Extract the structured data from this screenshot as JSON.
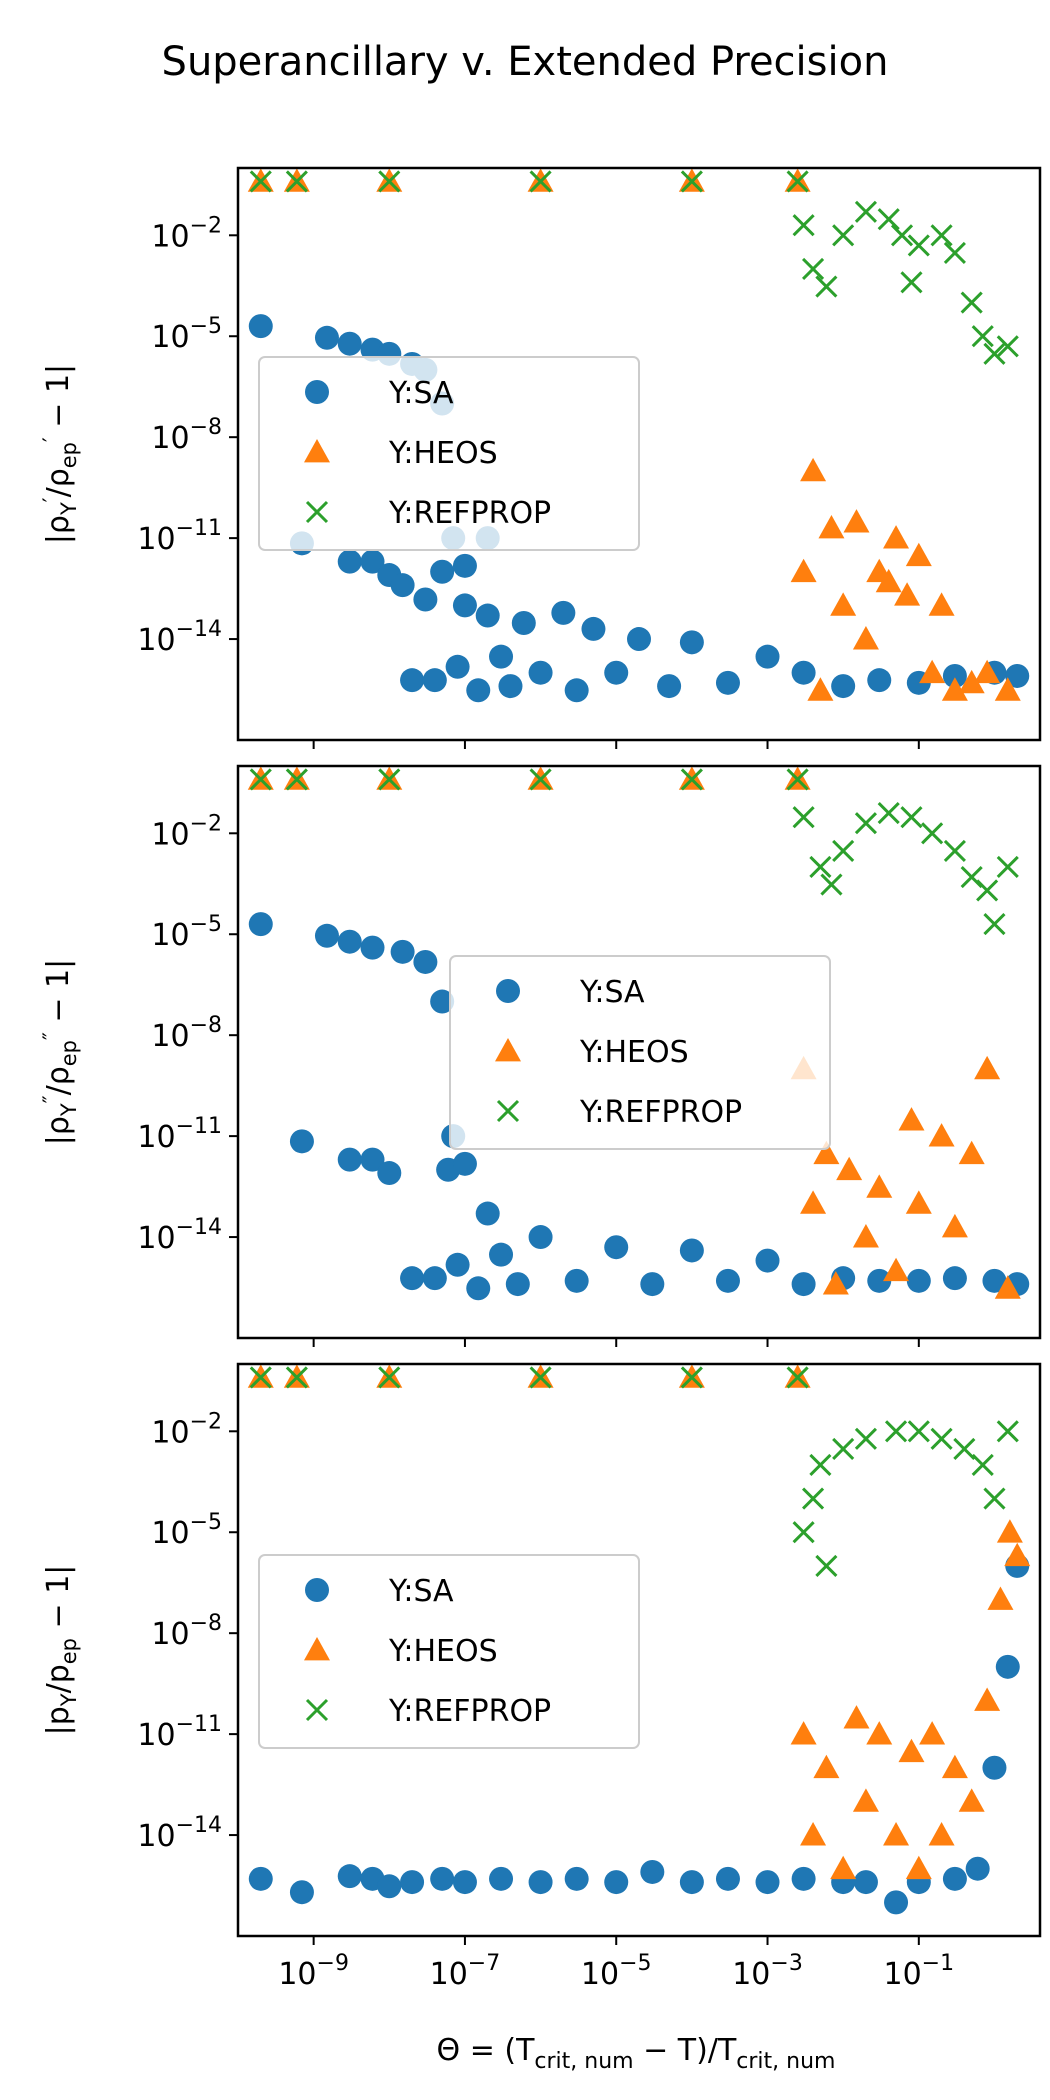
{
  "figure": {
    "title": "Superancillary v. Extended Precision",
    "xlabel": "Θ = (T_crit,num − T)/T_crit,num"
  },
  "colors": {
    "SA": "#1f77b4",
    "HEOS": "#ff7f0e",
    "REFPROP": "#2ca02c"
  },
  "chart_data": [
    {
      "type": "scatter",
      "panel": "top",
      "ylabel": "|ρ′_Y/ρ′_ep − 1|",
      "xscale": "log",
      "yscale": "log",
      "xlim": [
        1e-10,
        4
      ],
      "ylim": [
        1e-17,
        1.0
      ],
      "xticks": [
        "10^-9",
        "10^-7",
        "10^-5",
        "10^-3",
        "10^-1"
      ],
      "yticks": [
        "10^-2",
        "10^-5",
        "10^-8",
        "10^-11",
        "10^-14"
      ],
      "legend": {
        "placement": "center-left",
        "entries": [
          "Y:SA",
          "Y:HEOS",
          "Y:REFPROP"
        ]
      },
      "series": [
        {
          "name": "Y:SA",
          "marker": "circle",
          "points": [
            [
              2e-10,
              2e-05
            ],
            [
              7e-10,
              7e-12
            ],
            [
              1.5e-09,
              9e-06
            ],
            [
              3e-09,
              2e-12
            ],
            [
              3e-09,
              6e-06
            ],
            [
              6e-09,
              2e-12
            ],
            [
              6e-09,
              4e-06
            ],
            [
              1e-08,
              8e-13
            ],
            [
              1e-08,
              3e-06
            ],
            [
              1.5e-08,
              4e-13
            ],
            [
              2e-08,
              1.5e-06
            ],
            [
              2e-08,
              6e-16
            ],
            [
              3e-08,
              1e-06
            ],
            [
              3e-08,
              1.5e-13
            ],
            [
              4e-08,
              6e-16
            ],
            [
              5e-08,
              1e-07
            ],
            [
              5e-08,
              1e-12
            ],
            [
              7e-08,
              1e-11
            ],
            [
              8e-08,
              1.5e-15
            ],
            [
              1e-07,
              1.5e-12
            ],
            [
              1e-07,
              1e-13
            ],
            [
              1.5e-07,
              3e-16
            ],
            [
              2e-07,
              5e-14
            ],
            [
              2e-07,
              1e-11
            ],
            [
              3e-07,
              3e-15
            ],
            [
              4e-07,
              4e-16
            ],
            [
              6e-07,
              3e-14
            ],
            [
              1e-06,
              1e-15
            ],
            [
              2e-06,
              6e-14
            ],
            [
              3e-06,
              3e-16
            ],
            [
              5e-06,
              2e-14
            ],
            [
              1e-05,
              1e-15
            ],
            [
              2e-05,
              1e-14
            ],
            [
              5e-05,
              4e-16
            ],
            [
              0.0001,
              8e-15
            ],
            [
              0.0003,
              5e-16
            ],
            [
              0.001,
              3e-15
            ],
            [
              0.003,
              1e-15
            ],
            [
              0.01,
              4e-16
            ],
            [
              0.03,
              6e-16
            ],
            [
              0.1,
              5e-16
            ],
            [
              0.3,
              8e-16
            ],
            [
              1,
              1e-15
            ],
            [
              2,
              8e-16
            ]
          ]
        },
        {
          "name": "Y:HEOS",
          "marker": "triangle",
          "points": [
            [
              2e-10,
              0.4
            ],
            [
              6e-10,
              0.4
            ],
            [
              1e-08,
              0.4
            ],
            [
              1e-06,
              0.4
            ],
            [
              0.0001,
              0.4
            ],
            [
              0.0025,
              0.4
            ],
            [
              0.003,
              1e-12
            ],
            [
              0.004,
              1e-09
            ],
            [
              0.005,
              3e-16
            ],
            [
              0.007,
              2e-11
            ],
            [
              0.01,
              1e-13
            ],
            [
              0.015,
              3e-11
            ],
            [
              0.02,
              1e-14
            ],
            [
              0.03,
              1e-12
            ],
            [
              0.04,
              5e-13
            ],
            [
              0.05,
              1e-11
            ],
            [
              0.07,
              2e-13
            ],
            [
              0.1,
              3e-12
            ],
            [
              0.15,
              1e-15
            ],
            [
              0.2,
              1e-13
            ],
            [
              0.3,
              3e-16
            ],
            [
              0.5,
              5e-16
            ],
            [
              0.8,
              1e-15
            ],
            [
              1.5,
              3e-16
            ]
          ]
        },
        {
          "name": "Y:REFPROP",
          "marker": "x",
          "points": [
            [
              2e-10,
              0.4
            ],
            [
              6e-10,
              0.4
            ],
            [
              1e-08,
              0.4
            ],
            [
              1e-06,
              0.4
            ],
            [
              0.0001,
              0.4
            ],
            [
              0.0025,
              0.4
            ],
            [
              0.003,
              0.02
            ],
            [
              0.004,
              0.001
            ],
            [
              0.006,
              0.0003
            ],
            [
              0.01,
              0.01
            ],
            [
              0.02,
              0.05
            ],
            [
              0.04,
              0.03
            ],
            [
              0.06,
              0.01
            ],
            [
              0.08,
              0.0004
            ],
            [
              0.1,
              0.005
            ],
            [
              0.2,
              0.01
            ],
            [
              0.3,
              0.003
            ],
            [
              0.5,
              0.0001
            ],
            [
              0.7,
              1e-05
            ],
            [
              1,
              3e-06
            ],
            [
              1.5,
              5e-06
            ]
          ]
        }
      ]
    },
    {
      "type": "scatter",
      "panel": "middle",
      "ylabel": "|ρ″_Y/ρ″_ep − 1|",
      "xscale": "log",
      "yscale": "log",
      "xlim": [
        1e-10,
        4
      ],
      "ylim": [
        1e-17,
        1.0
      ],
      "xticks": [
        "10^-9",
        "10^-7",
        "10^-5",
        "10^-3",
        "10^-1"
      ],
      "yticks": [
        "10^-2",
        "10^-5",
        "10^-8",
        "10^-11",
        "10^-14"
      ],
      "legend": {
        "placement": "center",
        "entries": [
          "Y:SA",
          "Y:HEOS",
          "Y:REFPROP"
        ]
      },
      "series": [
        {
          "name": "Y:SA",
          "marker": "circle",
          "points": [
            [
              2e-10,
              2e-05
            ],
            [
              7e-10,
              7e-12
            ],
            [
              1.5e-09,
              9e-06
            ],
            [
              3e-09,
              2e-12
            ],
            [
              3e-09,
              6e-06
            ],
            [
              6e-09,
              2e-12
            ],
            [
              6e-09,
              4e-06
            ],
            [
              1e-08,
              8e-13
            ],
            [
              1.5e-08,
              3e-06
            ],
            [
              2e-08,
              6e-16
            ],
            [
              3e-08,
              1.5e-06
            ],
            [
              4e-08,
              6e-16
            ],
            [
              5e-08,
              1e-07
            ],
            [
              6e-08,
              1e-12
            ],
            [
              7e-08,
              1e-11
            ],
            [
              8e-08,
              1.5e-15
            ],
            [
              1e-07,
              1.5e-12
            ],
            [
              1.5e-07,
              3e-16
            ],
            [
              2e-07,
              5e-14
            ],
            [
              3e-07,
              3e-15
            ],
            [
              5e-07,
              4e-16
            ],
            [
              1e-06,
              1e-14
            ],
            [
              3e-06,
              5e-16
            ],
            [
              1e-05,
              5e-15
            ],
            [
              3e-05,
              4e-16
            ],
            [
              0.0001,
              4e-15
            ],
            [
              0.0003,
              5e-16
            ],
            [
              0.001,
              2e-15
            ],
            [
              0.003,
              4e-16
            ],
            [
              0.01,
              6e-16
            ],
            [
              0.03,
              5e-16
            ],
            [
              0.1,
              5e-16
            ],
            [
              0.3,
              6e-16
            ],
            [
              1,
              5e-16
            ],
            [
              2,
              4e-16
            ]
          ]
        },
        {
          "name": "Y:HEOS",
          "marker": "triangle",
          "points": [
            [
              2e-10,
              0.4
            ],
            [
              6e-10,
              0.4
            ],
            [
              1e-08,
              0.4
            ],
            [
              1e-06,
              0.4
            ],
            [
              0.0001,
              0.4
            ],
            [
              0.0025,
              0.4
            ],
            [
              0.003,
              1e-09
            ],
            [
              0.004,
              1e-13
            ],
            [
              0.006,
              3e-12
            ],
            [
              0.008,
              4e-16
            ],
            [
              0.012,
              1e-12
            ],
            [
              0.02,
              1e-14
            ],
            [
              0.03,
              3e-13
            ],
            [
              0.05,
              1e-15
            ],
            [
              0.08,
              3e-11
            ],
            [
              0.1,
              1e-13
            ],
            [
              0.2,
              1e-11
            ],
            [
              0.3,
              2e-14
            ],
            [
              0.5,
              3e-12
            ],
            [
              0.8,
              1e-09
            ],
            [
              1.5,
              3e-16
            ]
          ]
        },
        {
          "name": "Y:REFPROP",
          "marker": "x",
          "points": [
            [
              2e-10,
              0.4
            ],
            [
              6e-10,
              0.4
            ],
            [
              1e-08,
              0.4
            ],
            [
              1e-06,
              0.4
            ],
            [
              0.0001,
              0.4
            ],
            [
              0.0025,
              0.4
            ],
            [
              0.003,
              0.03
            ],
            [
              0.005,
              0.001
            ],
            [
              0.007,
              0.0003
            ],
            [
              0.01,
              0.003
            ],
            [
              0.02,
              0.02
            ],
            [
              0.04,
              0.04
            ],
            [
              0.08,
              0.03
            ],
            [
              0.15,
              0.01
            ],
            [
              0.3,
              0.003
            ],
            [
              0.5,
              0.0005
            ],
            [
              0.8,
              0.0002
            ],
            [
              1,
              2e-05
            ],
            [
              1.5,
              0.001
            ]
          ]
        }
      ]
    },
    {
      "type": "scatter",
      "panel": "bottom",
      "ylabel": "|p_Y/p_ep − 1|",
      "xscale": "log",
      "yscale": "log",
      "xlim": [
        1e-10,
        4
      ],
      "ylim": [
        1e-17,
        1.0
      ],
      "xticks": [
        "10^-9",
        "10^-7",
        "10^-5",
        "10^-3",
        "10^-1"
      ],
      "yticks": [
        "10^-2",
        "10^-5",
        "10^-8",
        "10^-11",
        "10^-14"
      ],
      "legend": {
        "placement": "center-left",
        "entries": [
          "Y:SA",
          "Y:HEOS",
          "Y:REFPROP"
        ]
      },
      "series": [
        {
          "name": "Y:SA",
          "marker": "circle",
          "points": [
            [
              2e-10,
              5e-16
            ],
            [
              7e-10,
              2e-16
            ],
            [
              3e-09,
              6e-16
            ],
            [
              6e-09,
              5e-16
            ],
            [
              1e-08,
              3e-16
            ],
            [
              2e-08,
              4e-16
            ],
            [
              5e-08,
              5e-16
            ],
            [
              1e-07,
              4e-16
            ],
            [
              3e-07,
              5e-16
            ],
            [
              1e-06,
              4e-16
            ],
            [
              3e-06,
              5e-16
            ],
            [
              1e-05,
              4e-16
            ],
            [
              3e-05,
              8e-16
            ],
            [
              0.0001,
              4e-16
            ],
            [
              0.0003,
              5e-16
            ],
            [
              0.001,
              4e-16
            ],
            [
              0.003,
              5e-16
            ],
            [
              0.01,
              4e-16
            ],
            [
              0.02,
              4e-16
            ],
            [
              0.05,
              1e-16
            ],
            [
              0.1,
              4e-16
            ],
            [
              0.3,
              5e-16
            ],
            [
              0.6,
              1e-15
            ],
            [
              1,
              1e-12
            ],
            [
              1.5,
              1e-09
            ],
            [
              2,
              1e-06
            ]
          ]
        },
        {
          "name": "Y:HEOS",
          "marker": "triangle",
          "points": [
            [
              2e-10,
              0.4
            ],
            [
              6e-10,
              0.4
            ],
            [
              1e-08,
              0.4
            ],
            [
              1e-06,
              0.4
            ],
            [
              0.0001,
              0.4
            ],
            [
              0.0025,
              0.4
            ],
            [
              0.003,
              1e-11
            ],
            [
              0.004,
              1e-14
            ],
            [
              0.006,
              1e-12
            ],
            [
              0.01,
              1e-15
            ],
            [
              0.015,
              3e-11
            ],
            [
              0.02,
              1e-13
            ],
            [
              0.03,
              1e-11
            ],
            [
              0.05,
              1e-14
            ],
            [
              0.08,
              3e-12
            ],
            [
              0.1,
              1e-15
            ],
            [
              0.15,
              1e-11
            ],
            [
              0.2,
              1e-14
            ],
            [
              0.3,
              1e-12
            ],
            [
              0.5,
              1e-13
            ],
            [
              0.8,
              1e-10
            ],
            [
              1.2,
              1e-07
            ],
            [
              1.6,
              1e-05
            ],
            [
              2,
              2e-06
            ]
          ]
        },
        {
          "name": "Y:REFPROP",
          "marker": "x",
          "points": [
            [
              2e-10,
              0.4
            ],
            [
              6e-10,
              0.4
            ],
            [
              1e-08,
              0.4
            ],
            [
              1e-06,
              0.4
            ],
            [
              0.0001,
              0.4
            ],
            [
              0.0025,
              0.4
            ],
            [
              0.003,
              1e-05
            ],
            [
              0.004,
              0.0001
            ],
            [
              0.005,
              0.001
            ],
            [
              0.006,
              1e-06
            ],
            [
              0.01,
              0.003
            ],
            [
              0.02,
              0.006
            ],
            [
              0.05,
              0.01
            ],
            [
              0.1,
              0.01
            ],
            [
              0.2,
              0.006
            ],
            [
              0.4,
              0.003
            ],
            [
              0.7,
              0.001
            ],
            [
              1,
              0.0001
            ],
            [
              1.5,
              0.01
            ]
          ]
        }
      ]
    }
  ]
}
